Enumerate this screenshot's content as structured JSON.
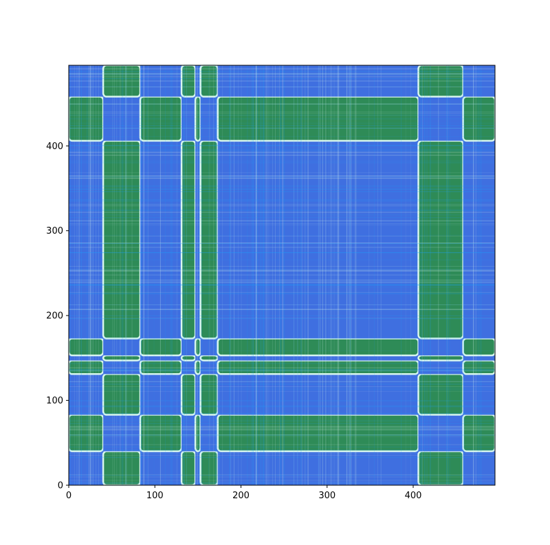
{
  "chart_data": {
    "type": "heatmap",
    "title": "",
    "xlabel": "",
    "ylabel": "",
    "xlim": [
      0,
      495
    ],
    "ylim": [
      0,
      495
    ],
    "grid": false,
    "colors": {
      "low": "#3f6fe0",
      "mid_blue": "#1aa3ff",
      "highlight": "#d8f6ee",
      "high": "#2e8b57"
    },
    "x_ticks": [
      {
        "value": 0,
        "label": "0"
      },
      {
        "value": 100,
        "label": "100"
      },
      {
        "value": 200,
        "label": "200"
      },
      {
        "value": 300,
        "label": "300"
      },
      {
        "value": 400,
        "label": "400"
      }
    ],
    "y_ticks": [
      {
        "value": 0,
        "label": "0"
      },
      {
        "value": 100,
        "label": "100"
      },
      {
        "value": 200,
        "label": "200"
      },
      {
        "value": 300,
        "label": "300"
      },
      {
        "value": 400,
        "label": "400"
      }
    ],
    "segments": [
      {
        "start": 0,
        "end": 40,
        "group": "A"
      },
      {
        "start": 40,
        "end": 83,
        "group": "B"
      },
      {
        "start": 83,
        "end": 131,
        "group": "A"
      },
      {
        "start": 131,
        "end": 147,
        "group": "B"
      },
      {
        "start": 147,
        "end": 153,
        "group": "A"
      },
      {
        "start": 153,
        "end": 173,
        "group": "B"
      },
      {
        "start": 173,
        "end": 406,
        "group": "A"
      },
      {
        "start": 406,
        "end": 458,
        "group": "B"
      },
      {
        "start": 458,
        "end": 495,
        "group": "A"
      }
    ],
    "value_rule": "cells where row and column belong to different groups are high (green); same group low (blue)"
  }
}
